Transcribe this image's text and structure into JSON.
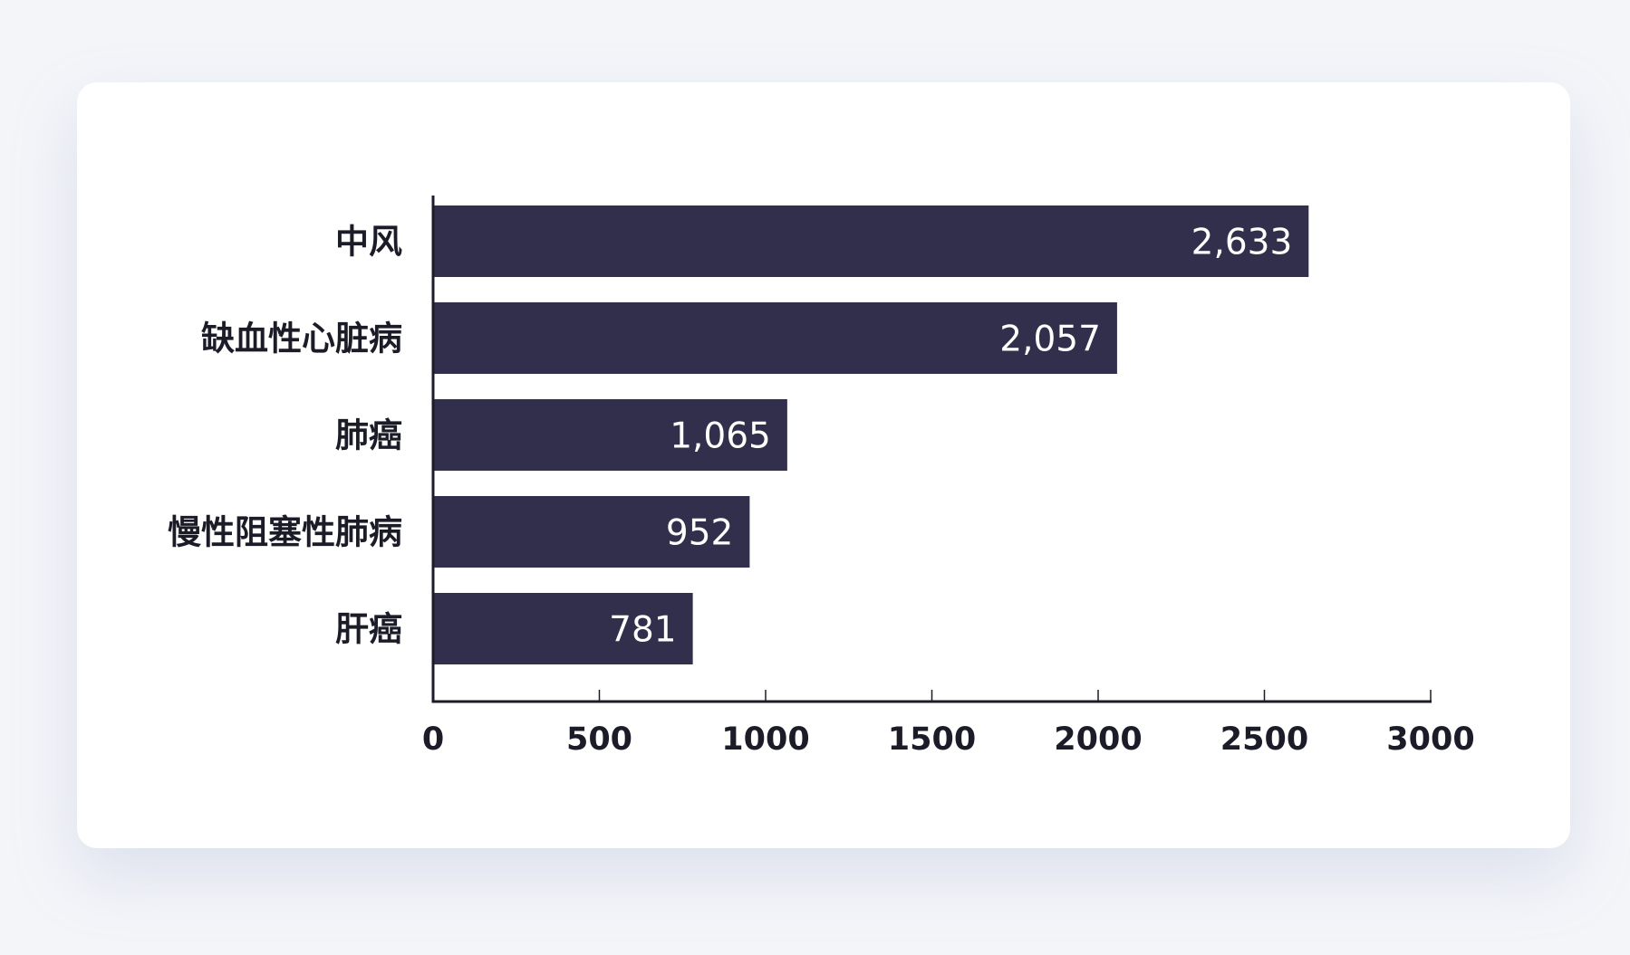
{
  "chart_data": {
    "type": "bar",
    "orientation": "horizontal",
    "categories": [
      "中风",
      "缺血性心脏病",
      "肺癌",
      "慢性阻塞性肺病",
      "肝癌"
    ],
    "values": [
      2633,
      2057,
      1065,
      952,
      781
    ],
    "value_labels": [
      "2,633",
      "2,057",
      "1,065",
      "952",
      "781"
    ],
    "xticks": [
      0,
      500,
      1000,
      1500,
      2000,
      2500,
      3000
    ],
    "xtick_labels": [
      "0",
      "500",
      "1000",
      "1500",
      "2000",
      "2500",
      "3000"
    ],
    "xlim": [
      0,
      3000
    ],
    "grid": false,
    "legend": "none",
    "bar_color": "#312f4b"
  },
  "colors": {
    "background": "#f3f5f9",
    "card": "#ffffff",
    "axis": "#1c1c28",
    "bar": "#312f4b",
    "bar_label": "#ffffff"
  }
}
